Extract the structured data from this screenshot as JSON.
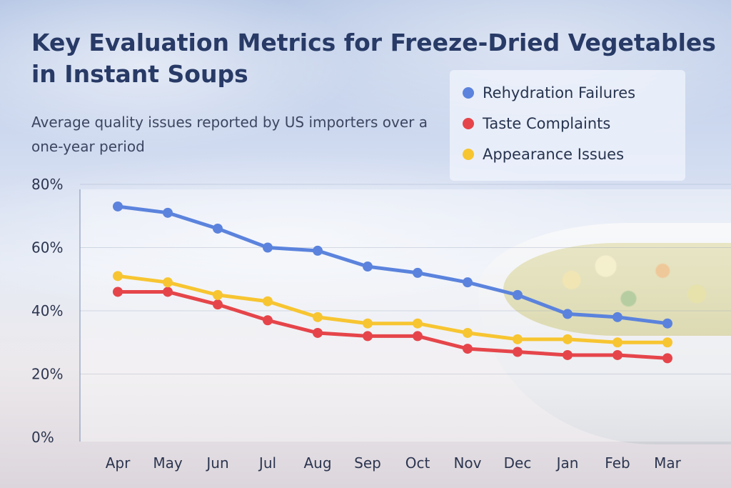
{
  "chart_data": {
    "type": "line",
    "title": "Key Evaluation Metrics for Freeze-Dried Vegetables in Instant Soups",
    "subtitle": "Average quality issues reported by US importers over a one-year period",
    "categories": [
      "Apr",
      "May",
      "Jun",
      "Jul",
      "Aug",
      "Sep",
      "Oct",
      "Nov",
      "Dec",
      "Jan",
      "Feb",
      "Mar"
    ],
    "ylim": [
      0,
      80
    ],
    "yticks": [
      "0%",
      "20%",
      "40%",
      "60%",
      "80%"
    ],
    "grid": true,
    "legend_position": "top-right",
    "series": [
      {
        "name": "Rehydration Failures",
        "color": "#5b83dd",
        "values": [
          73,
          71,
          66,
          60,
          59,
          54,
          52,
          49,
          45,
          39,
          38,
          36
        ]
      },
      {
        "name": "Taste Complaints",
        "color": "#e5454a",
        "values": [
          46,
          46,
          42,
          37,
          33,
          32,
          32,
          28,
          27,
          26,
          26,
          25
        ]
      },
      {
        "name": "Appearance Issues",
        "color": "#f7c531",
        "values": [
          51,
          49,
          45,
          43,
          38,
          36,
          36,
          33,
          31,
          31,
          30,
          30
        ]
      }
    ]
  }
}
